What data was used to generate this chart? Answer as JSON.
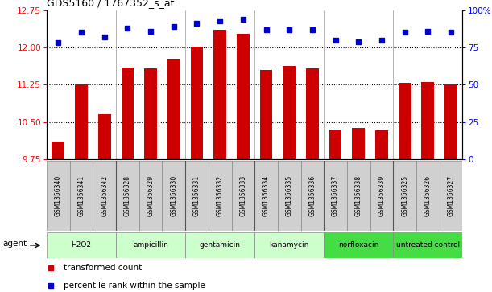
{
  "title": "GDS5160 / 1767352_s_at",
  "samples": [
    "GSM1356340",
    "GSM1356341",
    "GSM1356342",
    "GSM1356328",
    "GSM1356329",
    "GSM1356330",
    "GSM1356331",
    "GSM1356332",
    "GSM1356333",
    "GSM1356334",
    "GSM1356335",
    "GSM1356336",
    "GSM1356337",
    "GSM1356338",
    "GSM1356339",
    "GSM1356325",
    "GSM1356326",
    "GSM1356327"
  ],
  "bar_values": [
    10.1,
    11.25,
    10.65,
    11.6,
    11.58,
    11.78,
    12.02,
    12.35,
    12.28,
    11.55,
    11.62,
    11.58,
    10.35,
    10.38,
    10.33,
    11.28,
    11.3,
    11.25
  ],
  "percentile_values": [
    78,
    85,
    82,
    88,
    86,
    89,
    91,
    93,
    94,
    87,
    87,
    87,
    80,
    79,
    80,
    85,
    86,
    85
  ],
  "groups": [
    {
      "label": "H2O2",
      "start": 0,
      "end": 3,
      "color": "#ccffcc"
    },
    {
      "label": "ampicillin",
      "start": 3,
      "end": 6,
      "color": "#ccffcc"
    },
    {
      "label": "gentamicin",
      "start": 6,
      "end": 9,
      "color": "#ccffcc"
    },
    {
      "label": "kanamycin",
      "start": 9,
      "end": 12,
      "color": "#ccffcc"
    },
    {
      "label": "norfloxacin",
      "start": 12,
      "end": 15,
      "color": "#44dd44"
    },
    {
      "label": "untreated control",
      "start": 15,
      "end": 18,
      "color": "#44dd44"
    }
  ],
  "ylim_left": [
    9.75,
    12.75
  ],
  "ylim_right": [
    0,
    100
  ],
  "yticks_left": [
    9.75,
    10.5,
    11.25,
    12.0,
    12.75
  ],
  "yticks_right": [
    0,
    25,
    50,
    75,
    100
  ],
  "bar_color": "#cc0000",
  "dot_color": "#0000cc",
  "background_color": "#ffffff",
  "sample_box_color": "#d0d0d0",
  "sample_box_edge": "#888888",
  "agent_label": "agent",
  "legend_bar": "transformed count",
  "legend_dot": "percentile rank within the sample",
  "group_boundaries": [
    3,
    6,
    9,
    12,
    15
  ],
  "grid_yticks": [
    10.5,
    11.25,
    12.0
  ]
}
